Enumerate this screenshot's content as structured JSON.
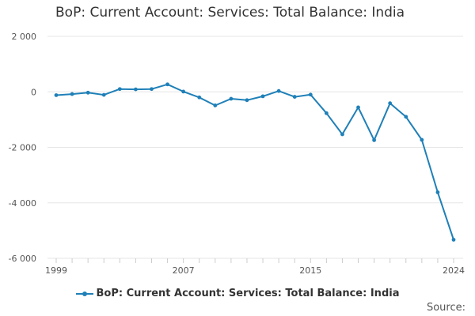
{
  "chart_data": {
    "type": "line",
    "title": "BoP: Current Account: Services: Total Balance: India",
    "xlabel": "",
    "ylabel": "",
    "x": [
      1999,
      2000,
      2001,
      2002,
      2003,
      2004,
      2005,
      2006,
      2007,
      2008,
      2009,
      2010,
      2011,
      2012,
      2013,
      2014,
      2015,
      2016,
      2017,
      2018,
      2019,
      2020,
      2021,
      2022,
      2023,
      2024
    ],
    "series": [
      {
        "name": "BoP: Current Account: Services: Total Balance: India",
        "color": "#1f80b8",
        "values": [
          -120,
          -80,
          -30,
          -110,
          100,
          90,
          100,
          270,
          10,
          -200,
          -490,
          -250,
          -300,
          -160,
          30,
          -180,
          -100,
          -770,
          -1530,
          -560,
          -1740,
          -410,
          -900,
          -1730,
          -3620,
          -5330
        ]
      }
    ],
    "xticks": [
      1999,
      2007,
      2015,
      2024
    ],
    "yticks": [
      2000,
      0,
      -2000,
      -4000,
      -6000
    ],
    "ytick_labels": [
      "2 000",
      "0",
      "-2 000",
      "-4 000",
      "-6 000"
    ],
    "xtick_labels": [
      "1999",
      "2007",
      "2015",
      "2024"
    ],
    "ylim": [
      -6000,
      2000
    ],
    "xlim": [
      1999,
      2024
    ],
    "grid": "horizontal",
    "legend": "bottom-center"
  },
  "footer": {
    "source_label": "Source:"
  }
}
